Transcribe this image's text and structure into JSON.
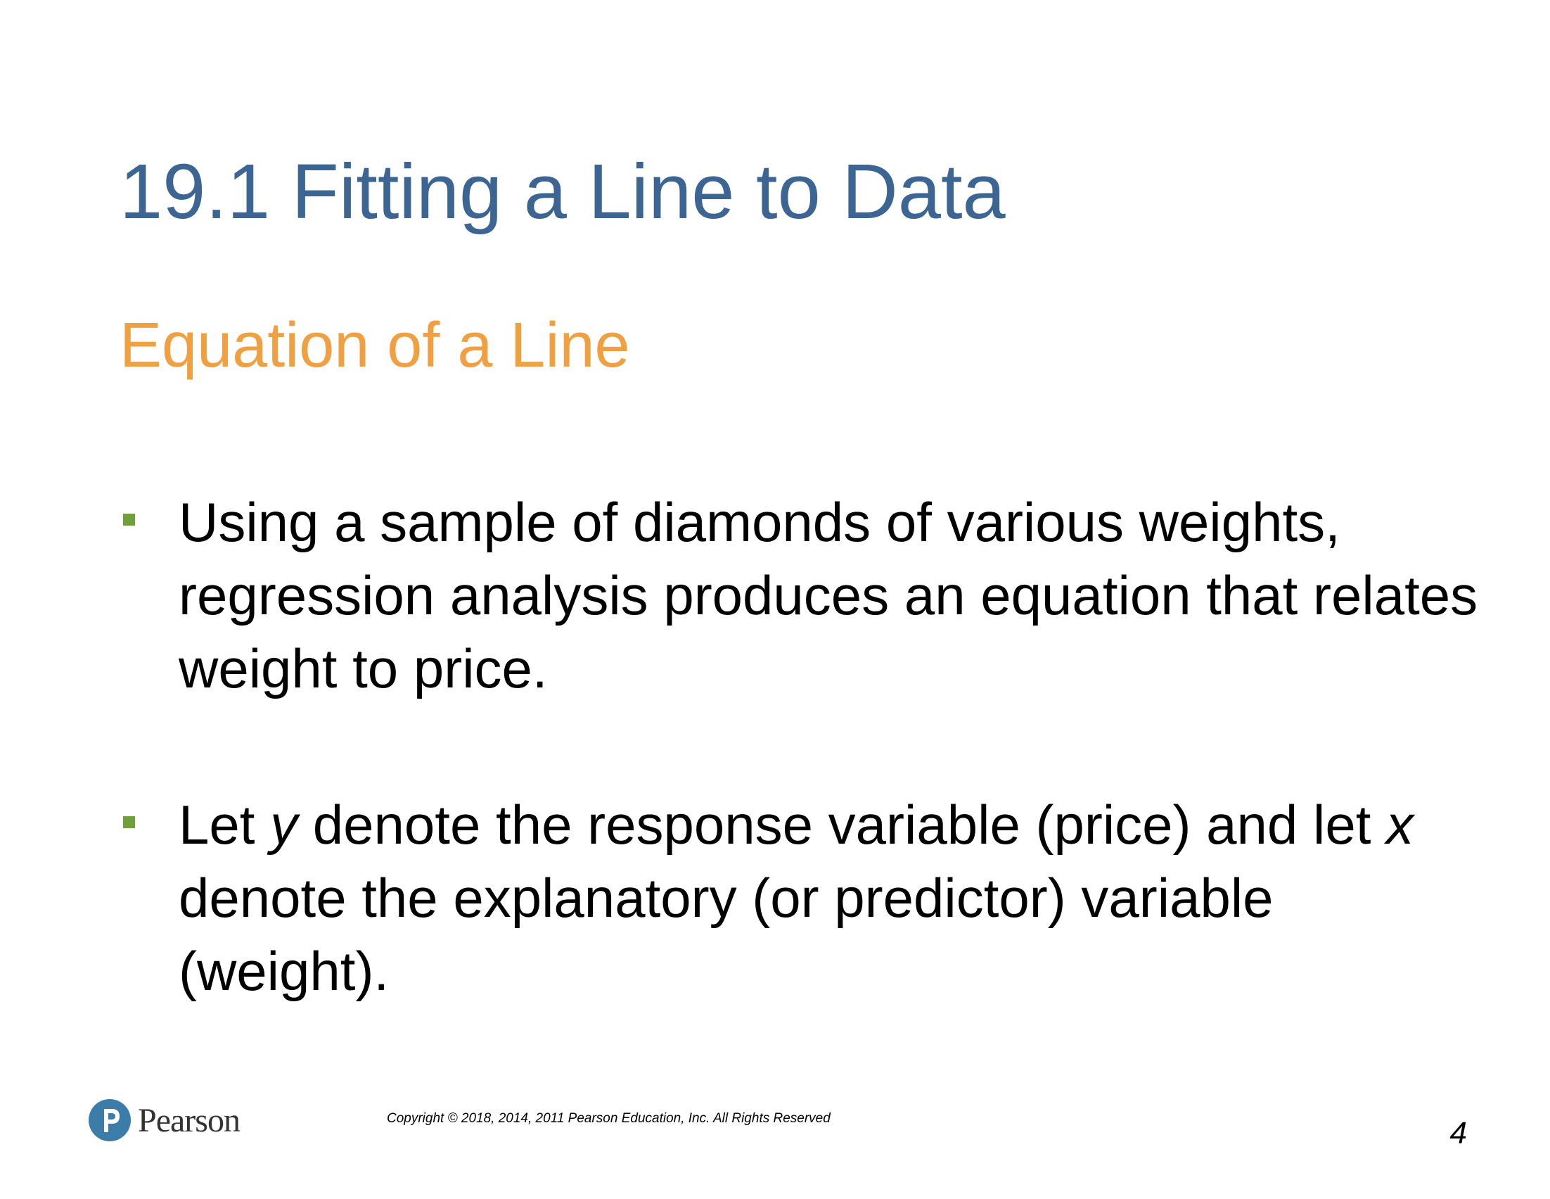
{
  "slide": {
    "title": "19.1 Fitting a Line to Data",
    "subtitle": "Equation of a Line",
    "bullets": [
      {
        "text": "Using a sample of diamonds of various weights, regression analysis produces an equation that relates weight to price."
      },
      {
        "part1": "Let ",
        "var_y": "y",
        "part2": " denote the response variable (price) and let ",
        "var_x": "x",
        "part3": " denote the explanatory (or predictor) variable (weight)."
      }
    ],
    "colors": {
      "title": "#3d6594",
      "subtitle": "#f0a040",
      "bullet_marker": "#6fa13b",
      "logo": "#3b7ca8"
    }
  },
  "footer": {
    "logo_text": "Pearson",
    "logo_icon": "pearson-p-logo-icon",
    "copyright": "Copyright © 2018, 2014, 2011 Pearson Education, Inc. All Rights Reserved",
    "page_number": "4"
  }
}
